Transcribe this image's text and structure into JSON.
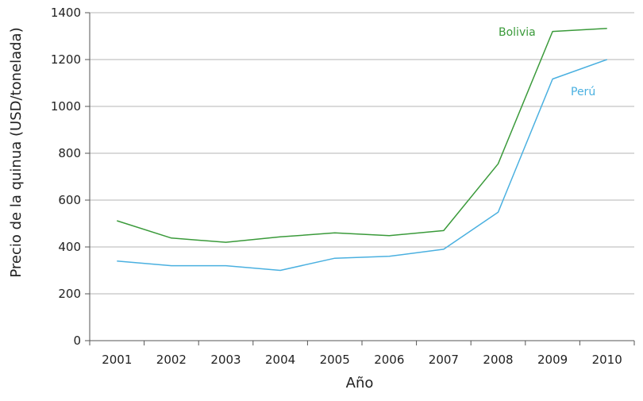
{
  "chart_data": {
    "type": "line",
    "title": "",
    "xlabel": "Año",
    "ylabel": "Precio de la quinua (USD/tonelada)",
    "categories": [
      "2001",
      "2002",
      "2003",
      "2004",
      "2005",
      "2006",
      "2007",
      "2008",
      "2009",
      "2010"
    ],
    "ylim": [
      0,
      1400
    ],
    "yticks": [
      0,
      200,
      400,
      600,
      800,
      1000,
      1200,
      1400
    ],
    "grid": "horizontal",
    "legend": "inline-labels",
    "series": [
      {
        "name": "Bolivia",
        "color": "#3a9a3a",
        "values": [
          512,
          438,
          420,
          443,
          460,
          448,
          470,
          755,
          1320,
          1333
        ]
      },
      {
        "name": "Perú",
        "color": "#4ab0e0",
        "values": [
          340,
          320,
          320,
          300,
          352,
          360,
          390,
          548,
          1117,
          1200
        ]
      }
    ]
  }
}
